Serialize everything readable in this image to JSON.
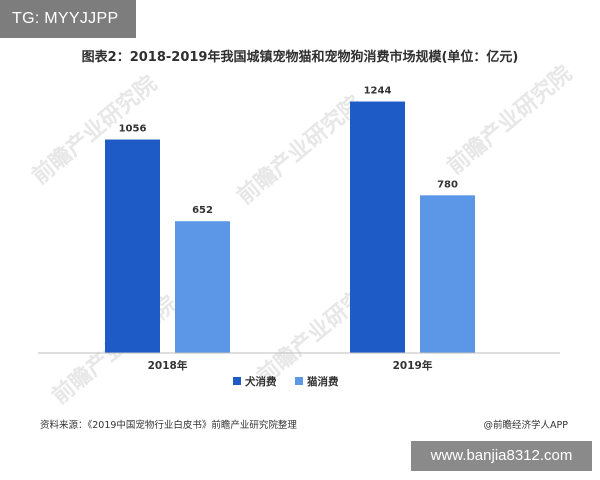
{
  "badge": {
    "text": "TG: MYYJJPP"
  },
  "title": "图表2：2018-2019年我国城镇宠物猫和宠物狗消费市场规模(单位：亿元)",
  "watermark": "前瞻产业研究院",
  "source": {
    "left": "资料来源：《2019中国宠物行业白皮书》前瞻产业研究院整理",
    "right": "@前瞻经济学人APP"
  },
  "site_badge": {
    "text": "www.banjia8312.com"
  },
  "colors": {
    "dog": "#1e5bc6",
    "cat": "#5b97e6",
    "axis": "#bfbfbf"
  },
  "chart_data": {
    "type": "bar",
    "categories": [
      "2018年",
      "2019年"
    ],
    "series": [
      {
        "name": "犬消费",
        "values": [
          1056,
          1244
        ]
      },
      {
        "name": "猫消费",
        "values": [
          652,
          780
        ]
      }
    ],
    "title": "图表2：2018-2019年我国城镇宠物猫和宠物狗消费市场规模(单位：亿元)",
    "xlabel": "",
    "ylabel": "",
    "ylim": [
      0,
      1400
    ],
    "grid": false,
    "legend": "bottom-center"
  }
}
